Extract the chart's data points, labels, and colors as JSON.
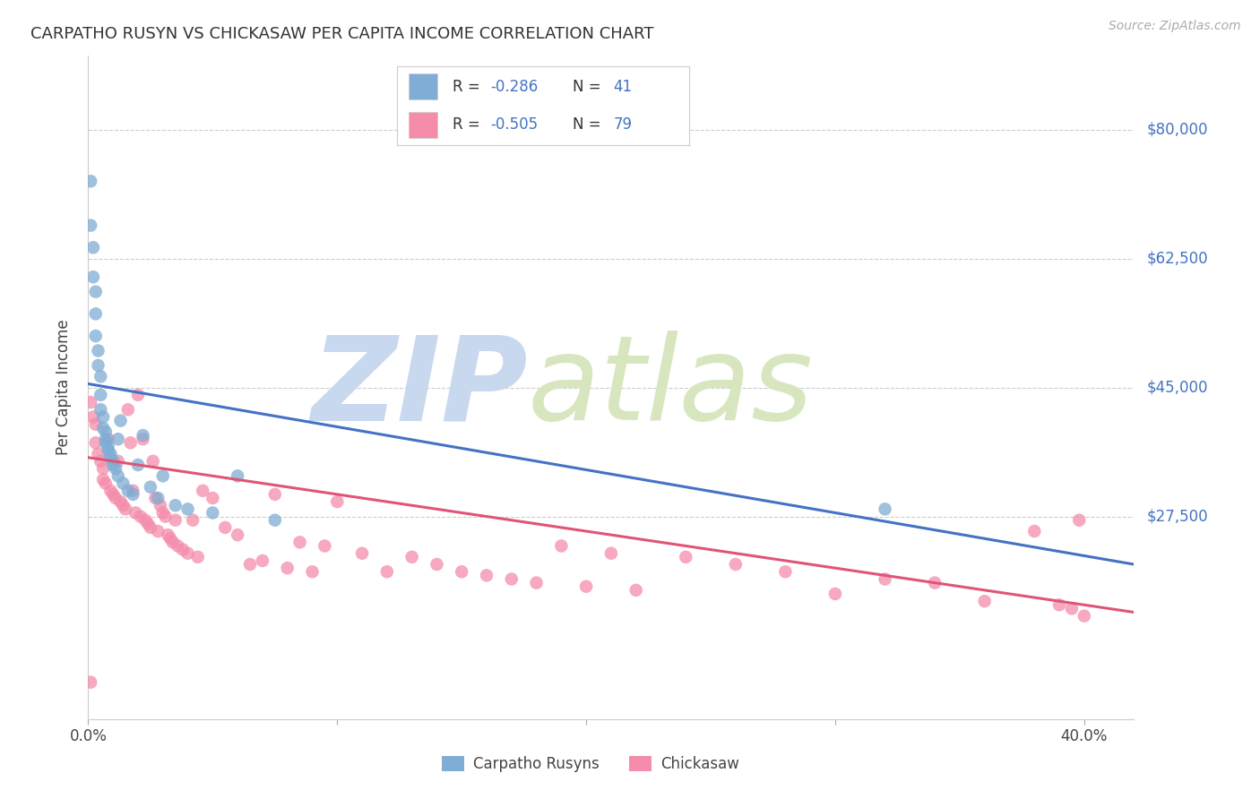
{
  "title": "CARPATHO RUSYN VS CHICKASAW PER CAPITA INCOME CORRELATION CHART",
  "source": "Source: ZipAtlas.com",
  "ylabel": "Per Capita Income",
  "ytick_labels": [
    "$80,000",
    "$62,500",
    "$45,000",
    "$27,500"
  ],
  "ytick_values": [
    80000,
    62500,
    45000,
    27500
  ],
  "ylim": [
    0,
    90000
  ],
  "xlim": [
    0.0,
    0.42
  ],
  "blue_R": -0.286,
  "blue_N": 41,
  "pink_R": -0.505,
  "pink_N": 79,
  "blue_color": "#7fadd4",
  "pink_color": "#f48caa",
  "blue_line_color": "#4472c4",
  "pink_line_color": "#e05577",
  "watermark_zip": "ZIP",
  "watermark_atlas": "atlas",
  "watermark_color": "#cdd9ef",
  "blue_line_x0": 0.0,
  "blue_line_x1": 0.42,
  "blue_line_y0": 45500,
  "blue_line_y1": 21000,
  "pink_line_x0": 0.0,
  "pink_line_x1": 0.42,
  "pink_line_y0": 35500,
  "pink_line_y1": 14500,
  "blue_scatter_x": [
    0.001,
    0.001,
    0.002,
    0.002,
    0.003,
    0.003,
    0.003,
    0.004,
    0.004,
    0.005,
    0.005,
    0.005,
    0.006,
    0.006,
    0.007,
    0.007,
    0.007,
    0.008,
    0.008,
    0.009,
    0.009,
    0.01,
    0.01,
    0.011,
    0.012,
    0.012,
    0.013,
    0.014,
    0.016,
    0.018,
    0.02,
    0.022,
    0.025,
    0.028,
    0.03,
    0.035,
    0.04,
    0.05,
    0.06,
    0.075,
    0.32
  ],
  "blue_scatter_y": [
    73000,
    67000,
    64000,
    60000,
    58000,
    55000,
    52000,
    50000,
    48000,
    46500,
    44000,
    42000,
    41000,
    39500,
    39000,
    38000,
    37500,
    37000,
    36500,
    36000,
    35500,
    35000,
    34500,
    34000,
    38000,
    33000,
    40500,
    32000,
    31000,
    30500,
    34500,
    38500,
    31500,
    30000,
    33000,
    29000,
    28500,
    28000,
    33000,
    27000,
    28500
  ],
  "pink_scatter_x": [
    0.001,
    0.002,
    0.003,
    0.003,
    0.004,
    0.005,
    0.006,
    0.006,
    0.007,
    0.008,
    0.009,
    0.01,
    0.011,
    0.012,
    0.013,
    0.014,
    0.015,
    0.016,
    0.017,
    0.018,
    0.019,
    0.02,
    0.021,
    0.022,
    0.023,
    0.024,
    0.025,
    0.026,
    0.027,
    0.028,
    0.029,
    0.03,
    0.031,
    0.032,
    0.033,
    0.034,
    0.035,
    0.036,
    0.038,
    0.04,
    0.042,
    0.044,
    0.046,
    0.05,
    0.055,
    0.06,
    0.065,
    0.07,
    0.075,
    0.08,
    0.085,
    0.09,
    0.095,
    0.1,
    0.11,
    0.12,
    0.13,
    0.14,
    0.15,
    0.16,
    0.17,
    0.18,
    0.19,
    0.2,
    0.21,
    0.22,
    0.24,
    0.26,
    0.28,
    0.3,
    0.32,
    0.34,
    0.36,
    0.38,
    0.39,
    0.395,
    0.398,
    0.4,
    0.001
  ],
  "pink_scatter_y": [
    43000,
    41000,
    40000,
    37500,
    36000,
    35000,
    34000,
    32500,
    32000,
    38000,
    31000,
    30500,
    30000,
    35000,
    29500,
    29000,
    28500,
    42000,
    37500,
    31000,
    28000,
    44000,
    27500,
    38000,
    27000,
    26500,
    26000,
    35000,
    30000,
    25500,
    29000,
    28000,
    27500,
    25000,
    24500,
    24000,
    27000,
    23500,
    23000,
    22500,
    27000,
    22000,
    31000,
    30000,
    26000,
    25000,
    21000,
    21500,
    30500,
    20500,
    24000,
    20000,
    23500,
    29500,
    22500,
    20000,
    22000,
    21000,
    20000,
    19500,
    19000,
    18500,
    23500,
    18000,
    22500,
    17500,
    22000,
    21000,
    20000,
    17000,
    19000,
    18500,
    16000,
    25500,
    15500,
    15000,
    27000,
    14000,
    5000
  ]
}
